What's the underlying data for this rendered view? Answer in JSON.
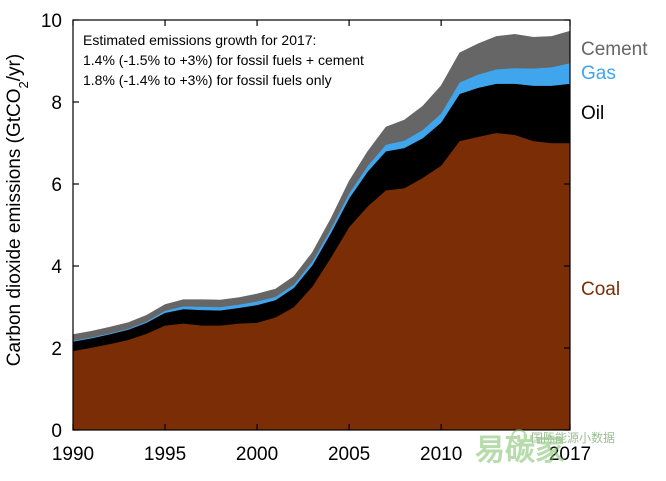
{
  "chart_data": {
    "type": "area",
    "stacked": true,
    "ylabel": "Carbon dioxide emissions (GtCO",
    "ylabel_sub": "2",
    "ylabel_tail": "/yr)",
    "xlabel": "",
    "ylim": [
      0,
      10
    ],
    "xlim": [
      1990,
      2017
    ],
    "x_ticks": [
      1990,
      1995,
      2000,
      2005,
      2010,
      2017
    ],
    "y_ticks": [
      0,
      2,
      4,
      6,
      8,
      10
    ],
    "grid": false,
    "annotation": [
      "Estimated emissions growth for 2017:",
      "1.4% (-1.5% to +3%) for fossil fuels + cement",
      "1.8% (-1.4% to +3%) for fossil fuels only"
    ],
    "x": [
      1990,
      1991,
      1992,
      1993,
      1994,
      1995,
      1996,
      1997,
      1998,
      1999,
      2000,
      2001,
      2002,
      2003,
      2004,
      2005,
      2006,
      2007,
      2008,
      2009,
      2010,
      2011,
      2012,
      2013,
      2014,
      2015,
      2016,
      2017
    ],
    "series": [
      {
        "name": "Coal",
        "color": "#7b2e05",
        "values": [
          1.93,
          2.01,
          2.1,
          2.2,
          2.35,
          2.55,
          2.6,
          2.55,
          2.55,
          2.6,
          2.62,
          2.75,
          3.0,
          3.5,
          4.2,
          4.95,
          5.45,
          5.85,
          5.9,
          6.15,
          6.45,
          7.05,
          7.15,
          7.25,
          7.2,
          7.05,
          7.0,
          7.0
        ]
      },
      {
        "name": "Oil",
        "color": "#000000",
        "values": [
          0.23,
          0.23,
          0.24,
          0.25,
          0.27,
          0.31,
          0.35,
          0.38,
          0.37,
          0.38,
          0.43,
          0.42,
          0.47,
          0.52,
          0.6,
          0.7,
          0.85,
          0.95,
          0.98,
          0.97,
          1.05,
          1.15,
          1.2,
          1.2,
          1.25,
          1.35,
          1.4,
          1.45
        ]
      },
      {
        "name": "Gas",
        "color": "#3fa6ee",
        "values": [
          0.02,
          0.02,
          0.02,
          0.02,
          0.03,
          0.05,
          0.07,
          0.08,
          0.08,
          0.08,
          0.09,
          0.08,
          0.08,
          0.09,
          0.1,
          0.12,
          0.14,
          0.16,
          0.18,
          0.2,
          0.22,
          0.28,
          0.32,
          0.35,
          0.38,
          0.42,
          0.45,
          0.5
        ]
      },
      {
        "name": "Cement",
        "color": "#666666",
        "values": [
          0.15,
          0.15,
          0.15,
          0.15,
          0.15,
          0.15,
          0.16,
          0.17,
          0.17,
          0.17,
          0.18,
          0.19,
          0.2,
          0.22,
          0.25,
          0.3,
          0.35,
          0.43,
          0.5,
          0.58,
          0.68,
          0.72,
          0.75,
          0.8,
          0.82,
          0.76,
          0.75,
          0.78
        ]
      }
    ],
    "legend_placement": "right, inline labels"
  },
  "watermark": {
    "text": "国际能源小数据",
    "logo_text": "易碳家"
  }
}
